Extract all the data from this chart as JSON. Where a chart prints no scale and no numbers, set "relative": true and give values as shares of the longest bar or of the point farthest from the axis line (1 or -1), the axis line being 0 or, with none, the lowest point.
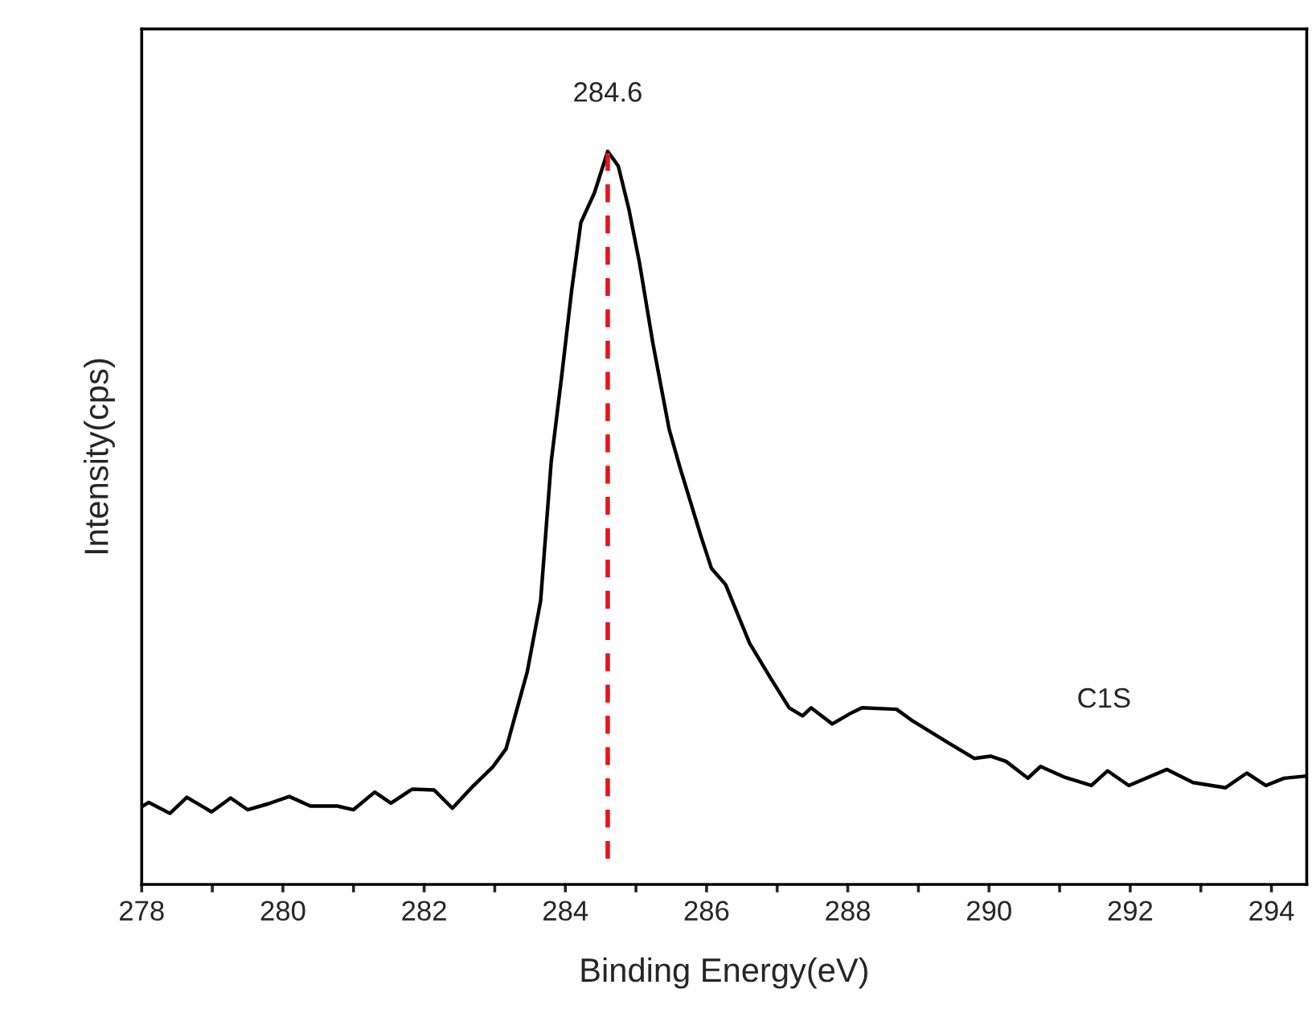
{
  "chart_data": {
    "type": "line",
    "relative": true,
    "xlabel": "Binding Energy(eV)",
    "ylabel": "Intensity(cps)",
    "xlim": [
      278,
      294.5
    ],
    "xticks": [
      278,
      {
        "value": 279,
        "label": null
      },
      280,
      {
        "value": 281,
        "label": null
      },
      282,
      {
        "value": 283,
        "label": null
      },
      284,
      {
        "value": 285,
        "label": null
      },
      286,
      {
        "value": 287,
        "label": null
      },
      288,
      {
        "value": 289,
        "label": null
      },
      290,
      {
        "value": 291,
        "label": null
      },
      292,
      {
        "value": 293,
        "label": null
      },
      294
    ],
    "tick_labels": "x",
    "grid": false,
    "marker": "none",
    "line_style": "solid",
    "series": [
      {
        "color": "#000000",
        "x": [
          278.0,
          278.1,
          278.4,
          278.64,
          278.99,
          279.26,
          279.5,
          279.79,
          280.09,
          280.39,
          280.77,
          281.0,
          281.3,
          281.53,
          281.83,
          282.14,
          282.4,
          282.67,
          282.97,
          283.16,
          283.46,
          283.65,
          283.8,
          283.95,
          284.09,
          284.22,
          284.41,
          284.6,
          284.75,
          284.9,
          285.05,
          285.24,
          285.47,
          285.62,
          285.92,
          286.07,
          286.27,
          286.61,
          286.91,
          287.17,
          287.36,
          287.48,
          287.78,
          288.05,
          288.2,
          288.69,
          288.92,
          289.41,
          289.79,
          290.02,
          290.24,
          290.55,
          290.73,
          291.08,
          291.45,
          291.68,
          291.98,
          292.52,
          292.89,
          293.35,
          293.65,
          293.92,
          294.18,
          294.5
        ],
        "values": [
          0.106,
          0.112,
          0.097,
          0.119,
          0.099,
          0.118,
          0.102,
          0.11,
          0.12,
          0.107,
          0.107,
          0.102,
          0.126,
          0.111,
          0.13,
          0.129,
          0.104,
          0.132,
          0.16,
          0.185,
          0.29,
          0.387,
          0.577,
          0.695,
          0.811,
          0.903,
          0.943,
          1.0,
          0.98,
          0.921,
          0.848,
          0.738,
          0.621,
          0.57,
          0.475,
          0.431,
          0.409,
          0.329,
          0.281,
          0.241,
          0.23,
          0.241,
          0.219,
          0.234,
          0.241,
          0.239,
          0.223,
          0.194,
          0.172,
          0.175,
          0.168,
          0.145,
          0.161,
          0.146,
          0.135,
          0.155,
          0.135,
          0.157,
          0.139,
          0.132,
          0.152,
          0.135,
          0.145,
          0.148
        ]
      }
    ],
    "ref_lines": [
      {
        "axis": "x",
        "value": 284.6,
        "label": "284.6",
        "color": "#e8141c",
        "line_style": "dashed"
      }
    ],
    "annotations": [
      "C1S"
    ]
  }
}
